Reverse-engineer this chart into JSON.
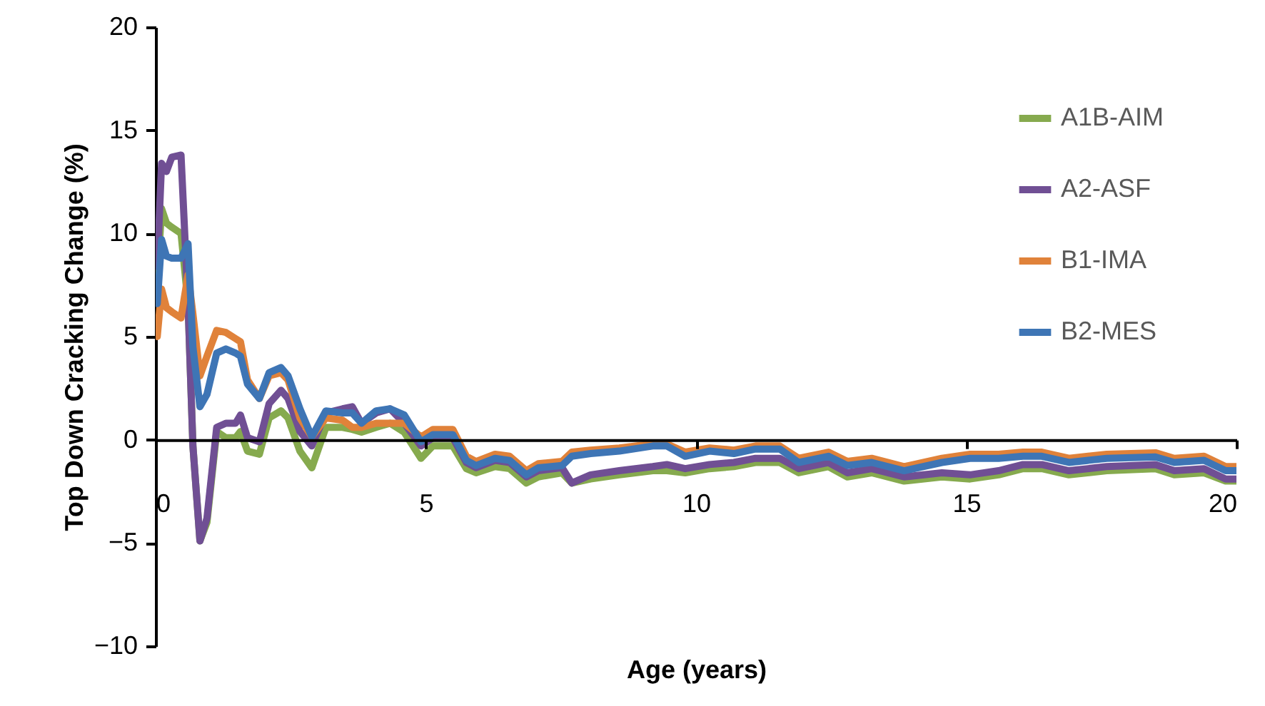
{
  "chart_data": {
    "type": "line",
    "xlabel": "Age (years)",
    "ylabel": "Top Down Cracking Change (%)",
    "x": [
      0.03,
      0.11,
      0.2,
      0.3,
      0.47,
      0.6,
      0.69,
      0.82,
      0.95,
      1.13,
      1.3,
      1.48,
      1.57,
      1.7,
      1.92,
      2.1,
      2.32,
      2.45,
      2.67,
      2.89,
      3.15,
      3.46,
      3.64,
      3.81,
      4.08,
      4.34,
      4.6,
      4.91,
      5.13,
      5.5,
      5.75,
      5.93,
      6.28,
      6.55,
      6.86,
      7.08,
      7.52,
      7.7,
      8.05,
      8.58,
      9.2,
      9.46,
      9.8,
      10.25,
      10.7,
      11.1,
      11.55,
      11.9,
      12.45,
      12.8,
      13.25,
      13.85,
      14.55,
      15.07,
      15.6,
      16.05,
      16.4,
      16.9,
      17.6,
      18.5,
      18.85,
      19.4,
      19.8,
      20
    ],
    "series": [
      {
        "name": "A1B-AIM",
        "color": "#86aa4e",
        "values": [
          7.7,
          11.2,
          10.5,
          10.3,
          10.0,
          6.6,
          -0.3,
          -4.9,
          -4.0,
          0.4,
          0.1,
          0.1,
          0.4,
          -0.55,
          -0.7,
          1.06,
          1.4,
          1.06,
          -0.55,
          -1.36,
          0.6,
          0.6,
          0.5,
          0.37,
          0.6,
          0.8,
          0.37,
          -0.9,
          -0.3,
          -0.3,
          -1.4,
          -1.6,
          -1.3,
          -1.4,
          -2.1,
          -1.8,
          -1.6,
          -2.1,
          -1.9,
          -1.7,
          -1.5,
          -1.5,
          -1.6,
          -1.4,
          -1.3,
          -1.1,
          -1.1,
          -1.6,
          -1.3,
          -1.8,
          -1.6,
          -2.0,
          -1.8,
          -1.9,
          -1.7,
          -1.4,
          -1.4,
          -1.7,
          -1.5,
          -1.4,
          -1.7,
          -1.6,
          -2.0,
          -2.0
        ]
      },
      {
        "name": "A2-ASF",
        "color": "#704f94",
        "values": [
          8.4,
          13.4,
          13.0,
          13.7,
          13.8,
          6.6,
          -0.3,
          -4.9,
          -3.8,
          0.6,
          0.8,
          0.8,
          1.2,
          0.1,
          -0.1,
          1.75,
          2.4,
          2.0,
          0.4,
          -0.3,
          1.3,
          1.5,
          1.6,
          0.8,
          1.3,
          1.5,
          0.8,
          -0.3,
          0.1,
          0.1,
          -1.1,
          -1.35,
          -1.0,
          -1.1,
          -1.8,
          -1.5,
          -1.35,
          -2.1,
          -1.7,
          -1.5,
          -1.3,
          -1.2,
          -1.4,
          -1.2,
          -1.1,
          -0.9,
          -0.9,
          -1.4,
          -1.1,
          -1.6,
          -1.4,
          -1.8,
          -1.6,
          -1.7,
          -1.5,
          -1.2,
          -1.2,
          -1.5,
          -1.3,
          -1.2,
          -1.5,
          -1.4,
          -1.9,
          -1.9
        ]
      },
      {
        "name": "B1-IMA",
        "color": "#e0823a",
        "values": [
          5.0,
          7.3,
          6.4,
          6.2,
          5.9,
          8.0,
          6.1,
          3.1,
          4.05,
          5.3,
          5.2,
          4.9,
          4.75,
          2.9,
          2.0,
          3.1,
          3.25,
          2.9,
          1.06,
          0.14,
          1.06,
          0.95,
          0.6,
          0.6,
          0.8,
          0.8,
          0.8,
          0.14,
          0.5,
          0.5,
          -0.8,
          -1.05,
          -0.7,
          -0.8,
          -1.5,
          -1.16,
          -1.05,
          -0.6,
          -0.5,
          -0.4,
          -0.2,
          -0.2,
          -0.6,
          -0.4,
          -0.5,
          -0.3,
          -0.3,
          -0.9,
          -0.6,
          -1.05,
          -0.9,
          -1.3,
          -0.9,
          -0.7,
          -0.7,
          -0.6,
          -0.6,
          -0.9,
          -0.7,
          -0.63,
          -0.9,
          -0.8,
          -1.3,
          -1.3
        ]
      },
      {
        "name": "B2-MES",
        "color": "#3e75b5",
        "values": [
          6.6,
          9.7,
          8.9,
          8.8,
          8.8,
          9.5,
          4.5,
          1.6,
          2.2,
          4.2,
          4.4,
          4.2,
          4.05,
          2.7,
          2.0,
          3.25,
          3.5,
          3.1,
          1.5,
          0.14,
          1.4,
          1.3,
          1.3,
          0.8,
          1.4,
          1.5,
          1.2,
          -0.1,
          0.25,
          0.25,
          -1.0,
          -1.25,
          -0.9,
          -1.0,
          -1.7,
          -1.36,
          -1.25,
          -0.8,
          -0.67,
          -0.55,
          -0.3,
          -0.3,
          -0.8,
          -0.55,
          -0.67,
          -0.45,
          -0.45,
          -1.1,
          -0.8,
          -1.25,
          -1.1,
          -1.5,
          -1.1,
          -0.9,
          -0.9,
          -0.8,
          -0.8,
          -1.1,
          -0.9,
          -0.83,
          -1.1,
          -1.0,
          -1.5,
          -1.5
        ]
      }
    ],
    "xlim": [
      0,
      20
    ],
    "xticks": [
      0,
      5,
      10,
      15,
      20
    ],
    "ylim": [
      -10,
      20
    ],
    "yticks": [
      -10,
      -5,
      0,
      5,
      10,
      15,
      20
    ],
    "legend": "top right",
    "grid": false,
    "marker": "none",
    "line_style": "solid"
  }
}
